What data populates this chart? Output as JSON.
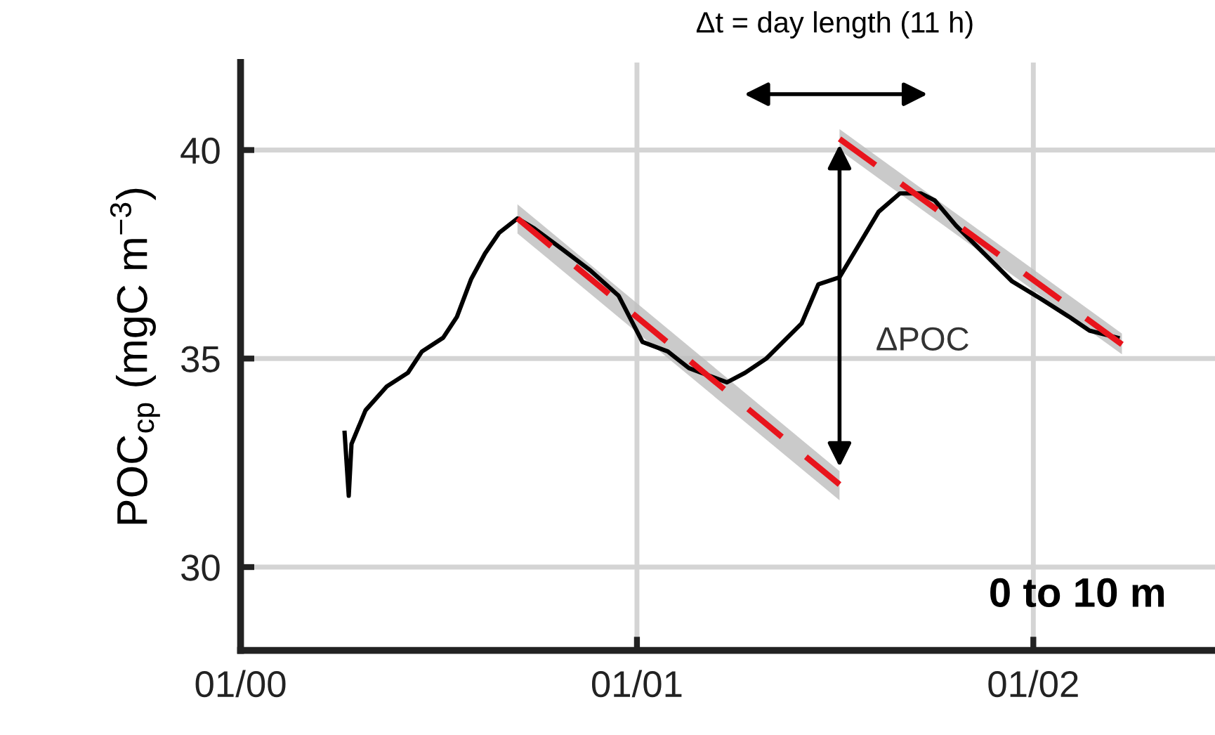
{
  "chart_data": {
    "type": "line",
    "ylabel": "POC$_{cp}$ (mgC m$^{−3}$)",
    "xlim": [
      "2000-12-31T00:00",
      "2001-01-02T11:00"
    ],
    "xticks": [
      {
        "value": "2000-12-31",
        "label": "01/00"
      },
      {
        "value": "2001-01-01",
        "label": "01/01"
      },
      {
        "value": "2001-01-02",
        "label": "01/02"
      }
    ],
    "ylim": [
      28,
      42.1
    ],
    "yticks": [
      30,
      35,
      40
    ],
    "grid": true,
    "series": [
      {
        "color": "#000000",
        "line_style": "solid",
        "x": [
          "2000-12-31T06:18",
          "2000-12-31T06:33",
          "2000-12-31T06:43",
          "2000-12-31T07:34",
          "2000-12-31T08:51",
          "2000-12-31T10:08",
          "2000-12-31T10:59",
          "2000-12-31T12:16",
          "2000-12-31T13:06",
          "2000-12-31T13:58",
          "2000-12-31T14:48",
          "2000-12-31T15:40",
          "2000-12-31T16:46",
          "2000-12-31T17:47",
          "2000-12-31T19:29",
          "2000-12-31T21:11",
          "2000-12-31T22:53",
          "2001-01-01T00:20",
          "2001-01-01T01:52",
          "2001-01-01T03:09",
          "2001-01-01T05:27",
          "2001-01-01T06:33",
          "2001-01-01T07:50",
          "2001-01-01T09:58",
          "2001-01-01T10:59",
          "2001-01-01T12:16",
          "2001-01-01T13:22",
          "2001-01-01T14:38",
          "2001-01-01T15:55",
          "2001-01-01T17:11",
          "2001-01-01T18:02",
          "2001-01-01T19:19",
          "2001-01-01T21:01",
          "2001-01-01T22:43",
          "2001-01-02T00:26",
          "2001-01-02T02:08",
          "2001-01-02T03:24",
          "2001-01-02T05:06"
        ],
        "values": [
          33.22,
          31.71,
          32.95,
          33.76,
          34.33,
          34.66,
          35.17,
          35.5,
          36.0,
          36.91,
          37.52,
          38.02,
          38.36,
          38.12,
          37.62,
          37.11,
          36.51,
          35.4,
          35.17,
          34.77,
          34.43,
          34.66,
          35.0,
          35.84,
          36.78,
          36.95,
          37.68,
          38.52,
          38.96,
          38.96,
          38.79,
          38.19,
          37.52,
          36.85,
          36.44,
          36.01,
          35.67,
          35.5
        ]
      },
      {
        "type": "line",
        "color": "#e8141c",
        "line_style": "dashed",
        "x": [
          "2000-12-31T16:46",
          "2001-01-01T12:16"
        ],
        "values": [
          38.36,
          31.98
        ],
        "lower": [
          38.0,
          31.6
        ],
        "upper": [
          38.7,
          32.3
        ]
      },
      {
        "type": "line",
        "color": "#e8141c",
        "line_style": "dashed",
        "x": [
          "2001-01-01T12:16",
          "2001-01-02T05:22"
        ],
        "values": [
          40.27,
          35.34
        ],
        "lower": [
          40.0,
          35.1
        ],
        "upper": [
          40.5,
          35.6
        ]
      }
    ],
    "annotations": [
      "Δt = day length (11 h)",
      "ΔPOC",
      "0 to 10 m"
    ]
  }
}
